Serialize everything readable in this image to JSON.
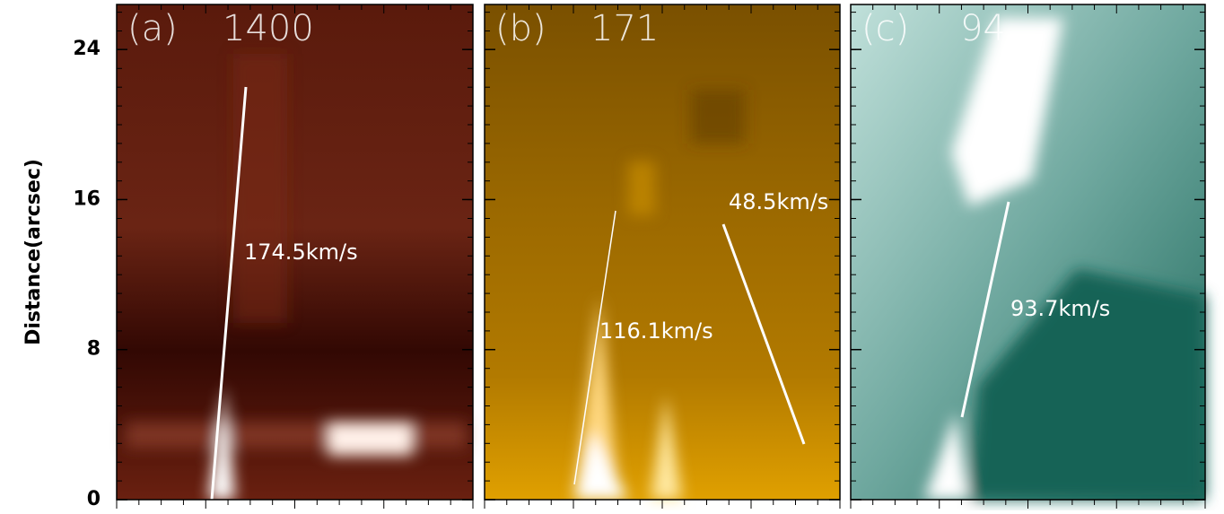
{
  "y_axis": {
    "label": "Distance(arcsec)",
    "ylim": [
      0,
      26.4
    ],
    "yticks": [
      0,
      8,
      16,
      24
    ]
  },
  "panels": [
    {
      "label": "(a)",
      "channel": "1400",
      "color": "#4a0f04",
      "speeds": [
        "174.5km/s"
      ]
    },
    {
      "label": "(b)",
      "channel": "171",
      "color": "#9a6400",
      "speeds": [
        "116.1km/s",
        "48.5km/s"
      ]
    },
    {
      "label": "(c)",
      "channel": "94",
      "color": "#2f7a6e",
      "speeds": [
        "93.7km/s"
      ]
    }
  ]
}
